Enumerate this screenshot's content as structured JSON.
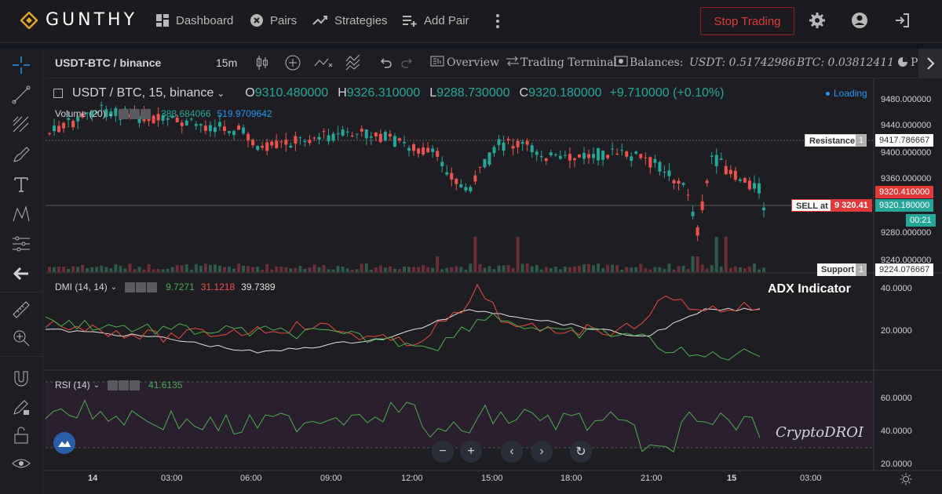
{
  "app": {
    "logo_text": "GUNTHY",
    "logo_icon": "diamond-logo-icon"
  },
  "nav": [
    {
      "label": "Dashboard",
      "icon": "dashboard-icon"
    },
    {
      "label": "Pairs",
      "icon": "pairs-icon"
    },
    {
      "label": "Strategies",
      "icon": "strategies-icon"
    },
    {
      "label": "Add Pair",
      "icon": "add-pair-icon"
    }
  ],
  "topbar": {
    "stop_label": "Stop Trading",
    "more_icon": "kebab-icon"
  },
  "toolbar": {
    "symbol": "USDT-BTC / binance",
    "interval": "15m",
    "overview": "Overview",
    "terminal": "Trading Terminal",
    "balances": "Balances:",
    "usdt_balance": "USDT: 0.51742986",
    "btc_balance": "BTC: 0.03812411",
    "truncated": "P"
  },
  "main_pane": {
    "title": "USDT / BTC, 15, binance",
    "o_label": "O",
    "o_value": "9310.480000",
    "h_label": "H",
    "h_value": "9326.310000",
    "l_label": "L",
    "l_value": "9288.730000",
    "c_label": "C",
    "c_value": "9320.180000",
    "change": "+9.710000 (+0.10%)",
    "loading": "Loading",
    "volume_label": "Volume (20)",
    "volume_v1": "383.684066",
    "volume_v2": "519.9709642"
  },
  "dmi_pane": {
    "label": "DMI (14, 14)",
    "v1": "9.7271",
    "v2": "31.1218",
    "v3": "39.7389",
    "annotation": "ADX Indicator"
  },
  "rsi_pane": {
    "label": "RSI (14)",
    "v1": "41.6135"
  },
  "price_axis": {
    "ticks": [
      "9480.000000",
      "9440.000000",
      "9400.000000",
      "9360.000000",
      "9320.000000",
      "9280.000000",
      "9240.000000"
    ],
    "resistance_label": "Resistance",
    "resistance_count": "1",
    "resistance_value": "9417.786667",
    "sell_label": "SELL at",
    "sell_value": "9 320.41",
    "red_price": "9320.410000",
    "green_price": "9320.180000",
    "countdown": "00:21",
    "support_label": "Support",
    "support_count": "1",
    "support_value": "9224.076667"
  },
  "dmi_axis": [
    "40.0000",
    "20.0000"
  ],
  "rsi_axis": [
    "60.0000",
    "40.0000",
    "20.0000"
  ],
  "time_axis": [
    "14",
    "03:00",
    "06:00",
    "09:00",
    "12:00",
    "15:00",
    "18:00",
    "21:00",
    "15",
    "03:00"
  ],
  "watermark": "CryptoDROI",
  "colors": {
    "up": "#26a69a",
    "down": "#ef5350",
    "accent": "#2196f3",
    "stop": "#e03a3a"
  }
}
